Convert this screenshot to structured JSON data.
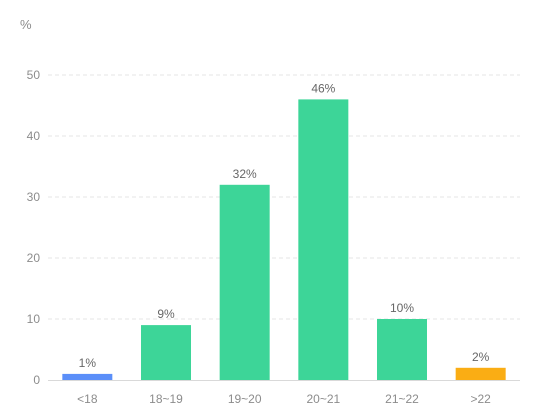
{
  "chart_data": {
    "type": "bar",
    "y_unit": "%",
    "categories": [
      "<18",
      "18~19",
      "19~20",
      "20~21",
      "21~22",
      ">22"
    ],
    "values": [
      1,
      9,
      32,
      46,
      10,
      2
    ],
    "data_labels": [
      "1%",
      "9%",
      "32%",
      "46%",
      "10%",
      "2%"
    ],
    "colors": [
      "#5b8ff9",
      "#3dd598",
      "#3dd598",
      "#3dd598",
      "#3dd598",
      "#faad14"
    ],
    "ylim": [
      0,
      50
    ],
    "yticks": [
      0,
      10,
      20,
      30,
      40,
      50
    ],
    "grid": true,
    "grid_style": "dashed",
    "legend": "none"
  }
}
